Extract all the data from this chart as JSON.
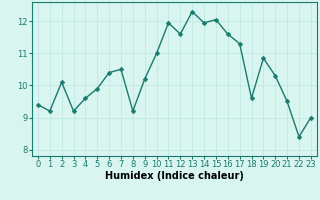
{
  "x": [
    0,
    1,
    2,
    3,
    4,
    5,
    6,
    7,
    8,
    9,
    10,
    11,
    12,
    13,
    14,
    15,
    16,
    17,
    18,
    19,
    20,
    21,
    22,
    23
  ],
  "y": [
    9.4,
    9.2,
    10.1,
    9.2,
    9.6,
    9.9,
    10.4,
    10.5,
    9.2,
    10.2,
    11.0,
    11.95,
    11.6,
    12.3,
    11.95,
    12.05,
    11.6,
    11.3,
    9.6,
    10.85,
    10.3,
    9.5,
    8.4,
    9.0
  ],
  "line_color": "#1a7a6e",
  "marker": "D",
  "markersize": 2.5,
  "linewidth": 1.0,
  "background_color": "#d8f5f0",
  "grid_color": "#c0e8e2",
  "xlabel": "Humidex (Indice chaleur)",
  "xlabel_fontsize": 7,
  "tick_fontsize": 6,
  "ylim": [
    7.8,
    12.6
  ],
  "xlim": [
    -0.5,
    23.5
  ],
  "yticks": [
    8,
    9,
    10,
    11,
    12
  ],
  "xticks": [
    0,
    1,
    2,
    3,
    4,
    5,
    6,
    7,
    8,
    9,
    10,
    11,
    12,
    13,
    14,
    15,
    16,
    17,
    18,
    19,
    20,
    21,
    22,
    23
  ]
}
